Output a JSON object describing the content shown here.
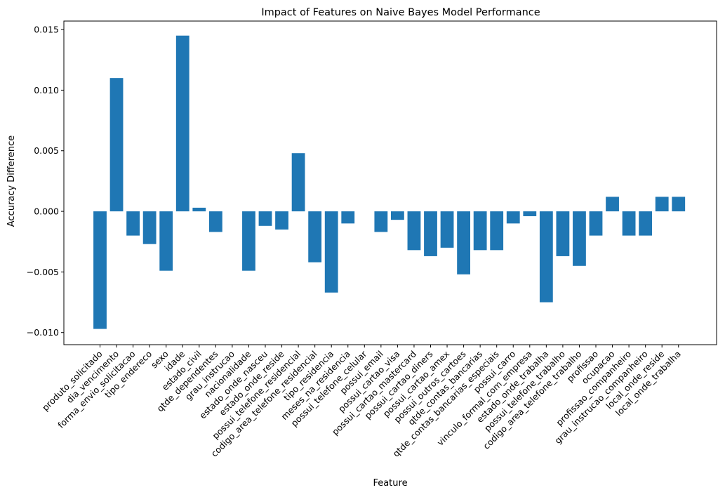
{
  "chart_data": {
    "type": "bar",
    "title": "Impact of Features on Naive Bayes Model Performance",
    "xlabel": "Feature",
    "ylabel": "Accuracy Difference",
    "ylim": [
      -0.011,
      0.0157
    ],
    "yticks": [
      -0.01,
      -0.005,
      0.0,
      0.005,
      0.01,
      0.015
    ],
    "ytick_labels": [
      "−0.010",
      "−0.005",
      "0.000",
      "0.005",
      "0.010",
      "0.015"
    ],
    "grid": false,
    "bar_color": "#1f77b4",
    "categories": [
      "produto_solicitado",
      "dia_vencimento",
      "forma_envio_solicitacao",
      "tipo_endereco",
      "sexo",
      "idade",
      "estado_civil",
      "qtde_dependentes",
      "grau_instrucao",
      "nacionalidade",
      "estado_onde_nasceu",
      "estado_onde_reside",
      "possui_telefone_residencial",
      "codigo_area_telefone_residencial",
      "tipo_residencia",
      "meses_na_residencia",
      "possui_telefone_celular",
      "possui_email",
      "possui_cartao_visa",
      "possui_cartao_mastercard",
      "possui_cartao_diners",
      "possui_cartao_amex",
      "possui_outros_cartoes",
      "qtde_contas_bancarias",
      "qtde_contas_bancarias_especiais",
      "possui_carro",
      "vinculo_formal_com_empresa",
      "estado_onde_trabalha",
      "possui_telefone_trabalho",
      "codigo_area_telefone_trabalho",
      "profissao",
      "ocupacao",
      "profissao_companheiro",
      "grau_instrucao_companheiro",
      "local_onde_reside",
      "local_onde_trabalha"
    ],
    "values": [
      -0.0097,
      0.011,
      -0.002,
      -0.0027,
      -0.0049,
      0.0145,
      0.0003,
      -0.0017,
      0.0,
      -0.0049,
      -0.0012,
      -0.0015,
      0.0048,
      -0.0042,
      -0.0067,
      -0.001,
      0.0,
      -0.0017,
      -0.0007,
      -0.0032,
      -0.0037,
      -0.003,
      -0.0052,
      -0.0032,
      -0.0032,
      -0.001,
      -0.0004,
      -0.0075,
      -0.0037,
      -0.0045,
      -0.002,
      0.0012,
      -0.002,
      -0.002,
      0.0012,
      0.0012
    ]
  }
}
